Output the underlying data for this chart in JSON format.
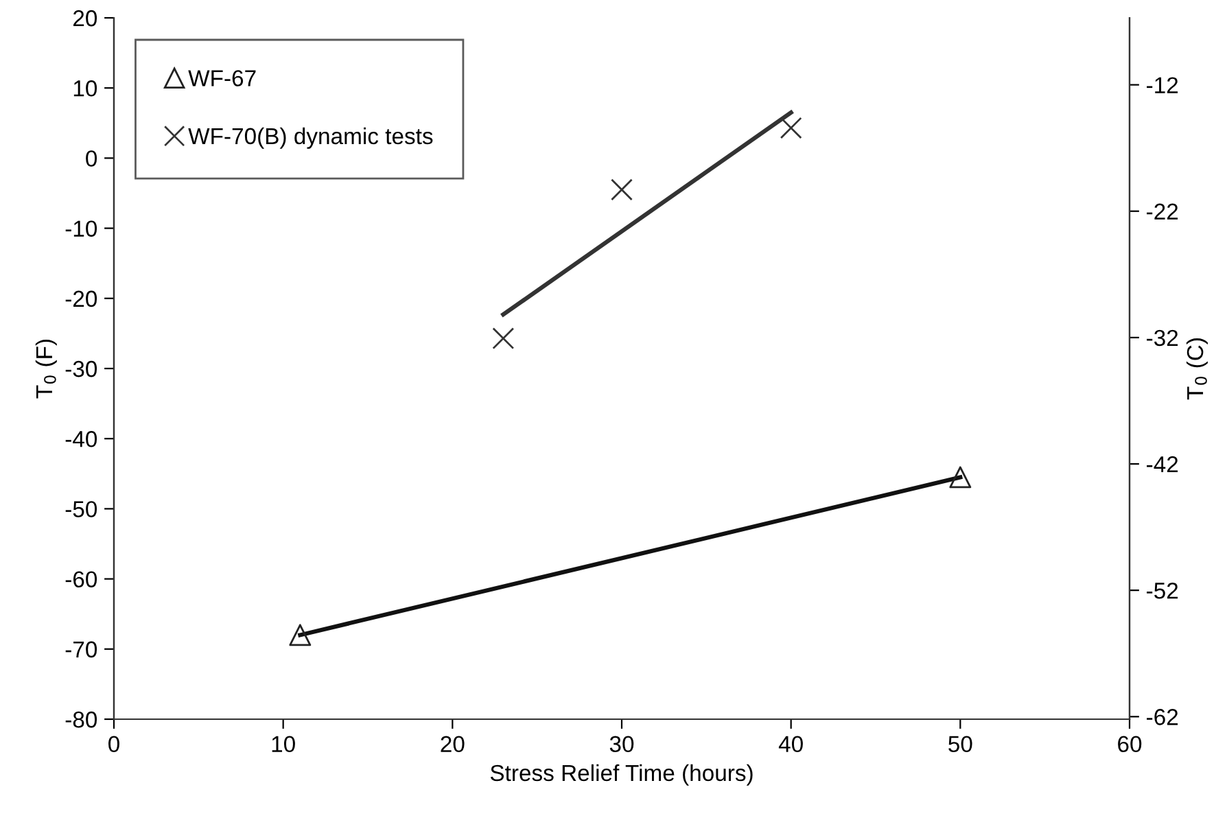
{
  "chart_data": {
    "type": "scatter",
    "xlabel": "Stress Relief Time (hours)",
    "ylabel": "T$_{0}$ (F)",
    "y2label": "T$_{0}$ (C)",
    "xlim": [
      0,
      60
    ],
    "xticks": [
      0,
      10,
      20,
      30,
      40,
      50,
      60
    ],
    "ylim": [
      -80,
      20
    ],
    "yticks": [
      -80,
      -70,
      -60,
      -50,
      -40,
      -30,
      -20,
      -10,
      0,
      10,
      20
    ],
    "y2lim": [
      -62.2,
      -6.7
    ],
    "y2ticks": [
      -62,
      -52,
      -42,
      -32,
      -22,
      -12
    ],
    "grid": false,
    "legend": "top left",
    "series": [
      {
        "name": "WF-67",
        "marker": "triangle",
        "color": "#222222",
        "x": [
          11,
          50
        ],
        "values": [
          -68,
          -45.5
        ]
      },
      {
        "name": "WF-70(B) dynamic tests",
        "marker": "cross",
        "color": "#333333",
        "x": [
          23,
          30,
          40
        ],
        "values": [
          -25.7,
          -4.5,
          4.3
        ]
      },
      {
        "type": "line",
        "marker": "none",
        "line_style": "solid",
        "color": "#111111",
        "x": [
          11,
          50
        ],
        "values": [
          -68,
          -45.5
        ]
      },
      {
        "type": "line",
        "marker": "none",
        "line_style": "solid",
        "color": "#333333",
        "x": [
          23,
          40
        ],
        "values": [
          -22.3,
          6.5
        ]
      }
    ]
  }
}
